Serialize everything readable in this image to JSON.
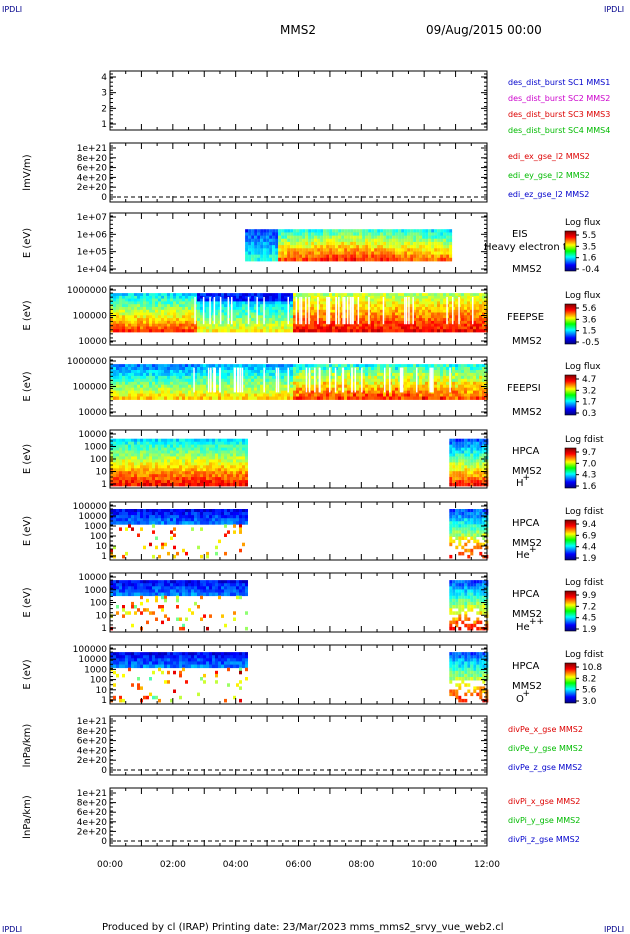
{
  "header": {
    "corner_label": "IPDLI",
    "spacecraft": "MMS2",
    "datetime": "09/Aug/2015 00:00"
  },
  "footer": {
    "text": "Produced by cl (IRAP)   Printing date: 23/Mar/2023   mms_mms2_srvy_vue_web2.cl"
  },
  "colors": {
    "red": "#dd0000",
    "green": "#00bb00",
    "blue": "#0000cc",
    "magenta": "#cc00cc"
  },
  "chart_data": {
    "type": "heatmap",
    "x_ticks": [
      "00:00",
      "02:00",
      "04:00",
      "06:00",
      "08:00",
      "10:00",
      "12:00"
    ],
    "xlim_hours": [
      0,
      12
    ],
    "panels": [
      {
        "id": "burst",
        "type": "line",
        "yticks": [
          "1",
          "2",
          "3",
          "4"
        ],
        "ylim": [
          1,
          4
        ],
        "legend": [
          {
            "text": "des_dist_burst SC1 MMS1",
            "color": "#0000cc"
          },
          {
            "text": "des_dist_burst SC2 MMS2",
            "color": "#cc00cc"
          },
          {
            "text": "des_dist_burst SC3 MMS3",
            "color": "#dd0000"
          },
          {
            "text": "des_dist_burst SC4 MMS4",
            "color": "#00bb00"
          }
        ]
      },
      {
        "id": "edi",
        "type": "line",
        "ylabel": "lmV/m)",
        "yticks": [
          "0",
          "2e+20",
          "4e+20",
          "6e+20",
          "8e+20",
          "1e+21"
        ],
        "ylim": [
          0,
          1e+21
        ],
        "dashed_zero": true,
        "legend": [
          {
            "text": "edi_ex_gse_l2 MMS2",
            "color": "#dd0000"
          },
          {
            "text": "edi_ey_gse_l2 MMS2",
            "color": "#00bb00"
          },
          {
            "text": "edi_ez_gse_l2 MMS2",
            "color": "#0000cc"
          }
        ]
      },
      {
        "id": "eis",
        "type": "heatmap",
        "ylabel": "E (eV)",
        "yticks": [
          "1e+04",
          "1e+05",
          "1e+06",
          "1e+07"
        ],
        "instrument": [
          "EIS",
          "Heavy electron to",
          "MMS2"
        ],
        "colorbar_title": "Log flux",
        "colorbar_ticks": [
          "5.5",
          "3.5",
          "1.6",
          "-0.4"
        ],
        "data_hours": [
          4.3,
          10.8
        ]
      },
      {
        "id": "feeps_e",
        "type": "heatmap",
        "ylabel": "E (eV)",
        "yticks": [
          "1000000",
          "100000",
          "10000"
        ],
        "instrument": [
          "FEEPSE",
          "MMS2"
        ],
        "colorbar_title": "Log flux",
        "colorbar_ticks": [
          "5.6",
          "3.6",
          "1.5",
          "-0.5"
        ],
        "data_hours": [
          0,
          12
        ]
      },
      {
        "id": "feeps_i",
        "type": "heatmap",
        "ylabel": "E (eV)",
        "yticks": [
          "1000000",
          "100000",
          "10000"
        ],
        "instrument": [
          "FEEPSI",
          "MMS2"
        ],
        "colorbar_title": "Log flux",
        "colorbar_ticks": [
          "4.7",
          "3.2",
          "1.7",
          "0.3"
        ],
        "data_hours": [
          0,
          12
        ]
      },
      {
        "id": "hpca_h",
        "type": "heatmap",
        "ylabel": "E (eV)",
        "yticks": [
          "10000",
          "1000",
          "100",
          "10",
          "1"
        ],
        "instrument": [
          "HPCA",
          "MMS2"
        ],
        "species": "H",
        "species_sup": "+",
        "colorbar_title": "Log fdist",
        "colorbar_ticks": [
          "9.7",
          "7.0",
          "4.3",
          "1.6"
        ],
        "data_hours": [
          [
            0,
            4.3
          ],
          [
            10.8,
            12
          ]
        ]
      },
      {
        "id": "hpca_he",
        "type": "heatmap",
        "ylabel": "E (eV)",
        "yticks": [
          "100000",
          "10000",
          "1000",
          "100",
          "10",
          "1"
        ],
        "instrument": [
          "HPCA",
          "MMS2"
        ],
        "species": "He",
        "species_sup": "+",
        "colorbar_title": "Log fdist",
        "colorbar_ticks": [
          "9.4",
          "6.9",
          "4.4",
          "1.9"
        ],
        "data_hours": [
          [
            0,
            4.3
          ],
          [
            10.8,
            12
          ]
        ]
      },
      {
        "id": "hpca_hepp",
        "type": "heatmap",
        "ylabel": "E (eV)",
        "yticks": [
          "10000",
          "1000",
          "100",
          "10",
          "1"
        ],
        "instrument": [
          "HPCA",
          "MMS2"
        ],
        "species": "He",
        "species_sup": "++",
        "colorbar_title": "Log fdist",
        "colorbar_ticks": [
          "9.9",
          "7.2",
          "4.5",
          "1.9"
        ],
        "data_hours": [
          [
            0,
            4.3
          ],
          [
            10.8,
            12
          ]
        ]
      },
      {
        "id": "hpca_o",
        "type": "heatmap",
        "ylabel": "E (eV)",
        "yticks": [
          "100000",
          "10000",
          "1000",
          "100",
          "10",
          "1"
        ],
        "instrument": [
          "HPCA",
          "MMS2"
        ],
        "species": "O",
        "species_sup": "+",
        "colorbar_title": "Log fdist",
        "colorbar_ticks": [
          "10.8",
          "8.2",
          "5.6",
          "3.0"
        ],
        "data_hours": [
          [
            0,
            4.3
          ],
          [
            10.8,
            12
          ]
        ]
      },
      {
        "id": "divpe",
        "type": "line",
        "ylabel": "lnPa/km)",
        "yticks": [
          "0",
          "2e+20",
          "4e+20",
          "6e+20",
          "8e+20",
          "1e+21"
        ],
        "ylim": [
          0,
          1e+21
        ],
        "dashed_zero": true,
        "legend": [
          {
            "text": "divPe_x_gse MMS2",
            "color": "#dd0000"
          },
          {
            "text": "divPe_y_gse MMS2",
            "color": "#00bb00"
          },
          {
            "text": "divPe_z_gse MMS2",
            "color": "#0000cc"
          }
        ]
      },
      {
        "id": "divpi",
        "type": "line",
        "ylabel": "lnPa/km)",
        "yticks": [
          "0",
          "2e+20",
          "4e+20",
          "6e+20",
          "8e+20",
          "1e+21"
        ],
        "ylim": [
          0,
          1e+21
        ],
        "dashed_zero": true,
        "legend": [
          {
            "text": "divPi_x_gse MMS2",
            "color": "#dd0000"
          },
          {
            "text": "divPi_y_gse MMS2",
            "color": "#00bb00"
          },
          {
            "text": "divPi_z_gse MMS2",
            "color": "#0000cc"
          }
        ]
      }
    ]
  }
}
